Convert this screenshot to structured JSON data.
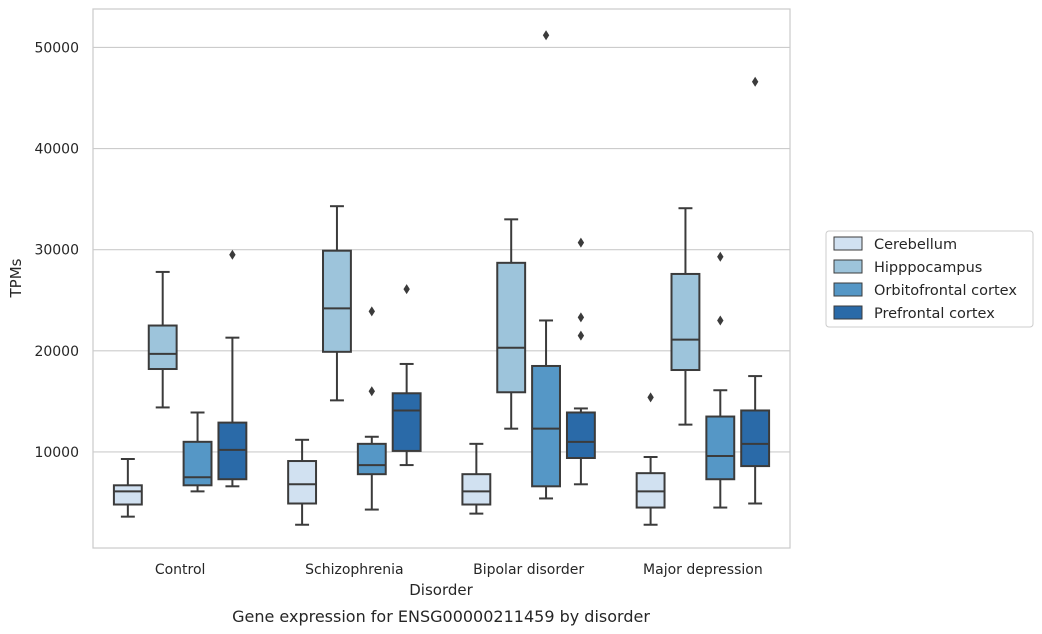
{
  "caption": "Gene expression for ENSG00000211459 by disorder",
  "chart_data": {
    "type": "box",
    "title": "",
    "xlabel": "Disorder",
    "ylabel": "TPMs",
    "categories": [
      "Control",
      "Schizophrenia",
      "Bipolar disorder",
      "Major depression"
    ],
    "ylim": [
      500,
      53800
    ],
    "yticks": [
      10000,
      20000,
      30000,
      40000,
      50000
    ],
    "grid": "horizontal",
    "legend_position": "right",
    "series": [
      {
        "name": "Cerebellum",
        "color": "#d1e1f1",
        "boxes": [
          {
            "whislo": 3600,
            "q1": 4800,
            "med": 6100,
            "q3": 6700,
            "whishi": 9300,
            "fliers": []
          },
          {
            "whislo": 2800,
            "q1": 4900,
            "med": 6800,
            "q3": 9100,
            "whishi": 11200,
            "fliers": []
          },
          {
            "whislo": 3900,
            "q1": 4800,
            "med": 6100,
            "q3": 7800,
            "whishi": 10800,
            "fliers": []
          },
          {
            "whislo": 2800,
            "q1": 4500,
            "med": 6100,
            "q3": 7900,
            "whishi": 9500,
            "fliers": [
              15400
            ]
          }
        ]
      },
      {
        "name": "Hipppocampus",
        "color": "#9dc4db",
        "boxes": [
          {
            "whislo": 14400,
            "q1": 18200,
            "med": 19700,
            "q3": 22500,
            "whishi": 27800,
            "fliers": []
          },
          {
            "whislo": 15100,
            "q1": 19900,
            "med": 24200,
            "q3": 29900,
            "whishi": 34300,
            "fliers": []
          },
          {
            "whislo": 12300,
            "q1": 15900,
            "med": 20300,
            "q3": 28700,
            "whishi": 33000,
            "fliers": []
          },
          {
            "whislo": 12700,
            "q1": 18100,
            "med": 21100,
            "q3": 27600,
            "whishi": 34100,
            "fliers": []
          }
        ]
      },
      {
        "name": "Orbitofrontal cortex",
        "color": "#5597c6",
        "boxes": [
          {
            "whislo": 6100,
            "q1": 6700,
            "med": 7500,
            "q3": 11000,
            "whishi": 13900,
            "fliers": []
          },
          {
            "whislo": 4300,
            "q1": 7800,
            "med": 8700,
            "q3": 10800,
            "whishi": 11500,
            "fliers": [
              16000,
              23900
            ]
          },
          {
            "whislo": 5400,
            "q1": 6600,
            "med": 12300,
            "q3": 18500,
            "whishi": 23000,
            "fliers": [
              51200
            ]
          },
          {
            "whislo": 4500,
            "q1": 7300,
            "med": 9600,
            "q3": 13500,
            "whishi": 16100,
            "fliers": [
              23000,
              29300
            ]
          }
        ]
      },
      {
        "name": "Prefrontal cortex",
        "color": "#2a6aa8",
        "boxes": [
          {
            "whislo": 6600,
            "q1": 7300,
            "med": 10200,
            "q3": 12900,
            "whishi": 21300,
            "fliers": [
              29500
            ]
          },
          {
            "whislo": 8700,
            "q1": 10100,
            "med": 14100,
            "q3": 15800,
            "whishi": 18700,
            "fliers": [
              26100
            ]
          },
          {
            "whislo": 6800,
            "q1": 9400,
            "med": 11000,
            "q3": 13900,
            "whishi": 14300,
            "fliers": [
              21500,
              23300,
              30700
            ]
          },
          {
            "whislo": 4900,
            "q1": 8600,
            "med": 10800,
            "q3": 14100,
            "whishi": 17500,
            "fliers": [
              46600
            ]
          }
        ]
      }
    ]
  }
}
